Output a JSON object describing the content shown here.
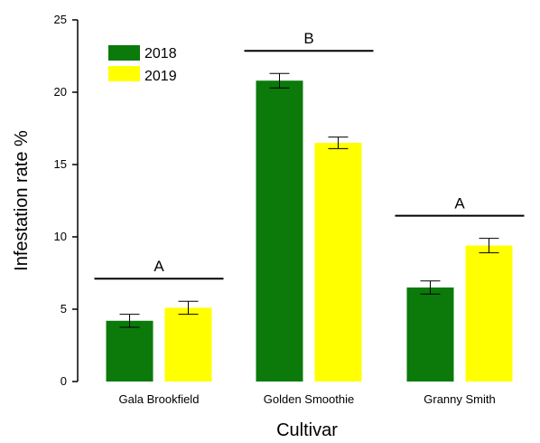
{
  "chart_data": {
    "type": "bar",
    "xlabel": "Cultivar",
    "ylabel": "Infestation rate  %",
    "ylim": [
      0,
      25
    ],
    "yticks": [
      0,
      5,
      10,
      15,
      20,
      25
    ],
    "categories": [
      "Gala Brookfield",
      "Golden Smoothie",
      "Granny Smith"
    ],
    "series": [
      {
        "name": "2018",
        "color": "#0b7a0b",
        "values": [
          4.2,
          20.8,
          6.5
        ],
        "errors": [
          0.45,
          0.5,
          0.45
        ]
      },
      {
        "name": "2019",
        "color": "#ffff00",
        "values": [
          5.1,
          16.5,
          9.4
        ],
        "errors": [
          0.45,
          0.4,
          0.5
        ]
      }
    ],
    "group_letters": [
      "A",
      "B",
      "A"
    ],
    "legend_position": "top-left",
    "grid": false
  }
}
